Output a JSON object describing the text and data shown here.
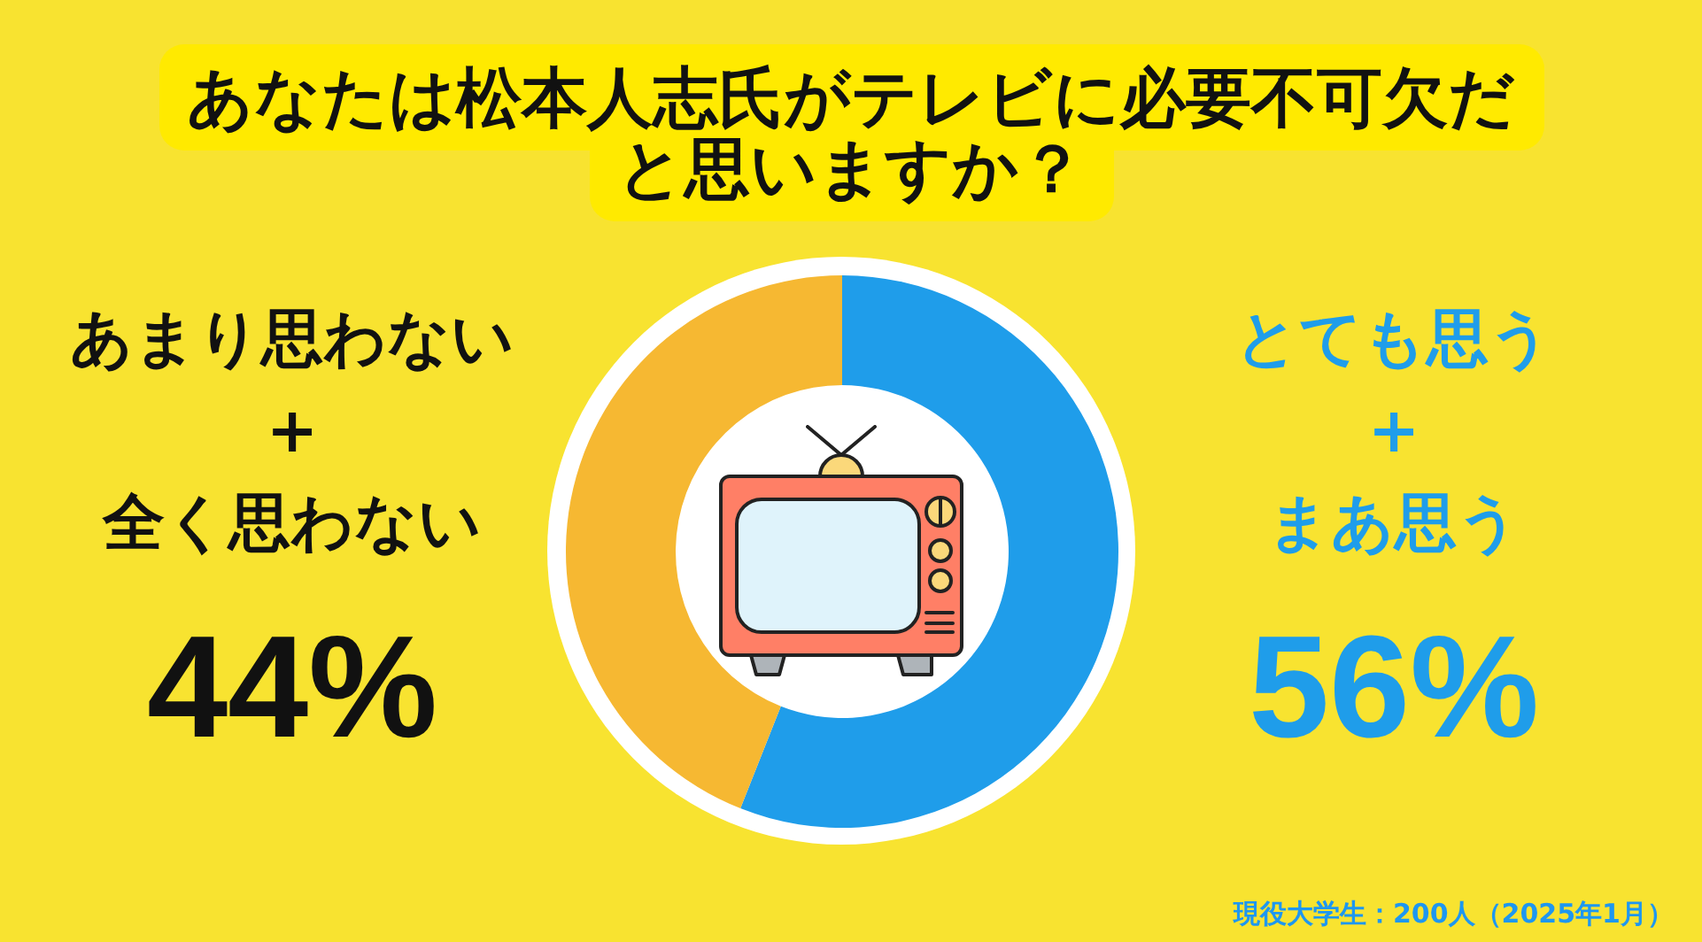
{
  "chart_data": {
    "type": "donut",
    "title": "あなたは松本人志氏がテレビに必要不可欠だと思いますか？",
    "categories": [
      "とても思う\n+\nまあ思う",
      "あまり思わない\n+\n全く思わない"
    ],
    "values": [
      56,
      44
    ],
    "colors": [
      "#1f9dea",
      "#f6b832"
    ],
    "value_labels": [
      "56%",
      "44%"
    ],
    "legend": false,
    "annotations": [
      "現役大学生：200人（2025年1月）"
    ]
  }
}
